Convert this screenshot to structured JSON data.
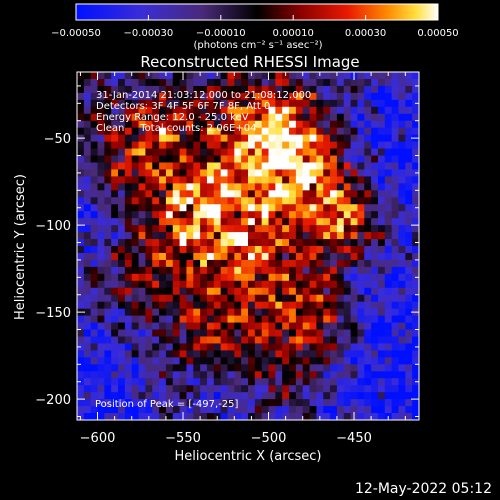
{
  "chart_data": {
    "type": "heatmap",
    "title": "Reconstructed RHESSI Image",
    "xlabel": "Heliocentric X (arcsec)",
    "ylabel": "Heliocentric Y (arcsec)",
    "xlim": [
      -612,
      -412
    ],
    "ylim": [
      -212,
      -12
    ],
    "x_ticks": [
      -600,
      -550,
      -500,
      -450
    ],
    "x_tick_labels": [
      "−600",
      "−550",
      "−500",
      "−450"
    ],
    "y_ticks": [
      -50,
      -100,
      -150,
      -200
    ],
    "y_tick_labels": [
      "−50",
      "−100",
      "−150",
      "−200"
    ],
    "colorbar": {
      "range": [
        -0.0005,
        0.0005
      ],
      "colormap": "blue-purple-black-red-orange-yellow-white",
      "ticks": [
        -0.0005,
        -0.0003,
        -0.0001,
        0.0001,
        0.0003,
        0.0005
      ],
      "tick_labels": [
        "−0.00050",
        "−0.00030",
        "−0.00010",
        "0.00010",
        "0.00030",
        "0.00050"
      ],
      "units_label": "(photons cm⁻² s⁻¹ asec⁻²)"
    },
    "annotations": [
      "31-Jan-2014 21:03:12.000 to 21:08:12.000",
      "Detectors: 3F 4F 5F 6F 7F 8F, Att 0",
      "Energy Range: 12.0 - 25.0 keV",
      "Clean     Total counts: 2.06E+04"
    ],
    "peak_label": "Position of Peak = [-497,-25]",
    "peak": [
      -497,
      -25
    ],
    "grid": false
  },
  "footer": {
    "timestamp": "12-May-2022 05:12"
  }
}
